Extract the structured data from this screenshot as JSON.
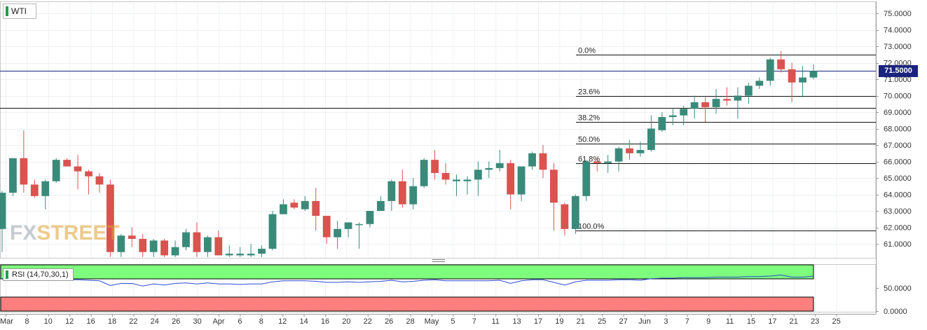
{
  "symbol": "WTI",
  "watermark": {
    "part1": "FX",
    "part2": "STREET"
  },
  "last_price": "71.5000",
  "rsi_label": "RSI (14,70,30,1)",
  "colors": {
    "up": "#3a8a7a",
    "down": "#d9534f",
    "rsi_line": "#2c4bd6",
    "overbought": "#7dfc7d",
    "oversold": "#ff7f7f",
    "price_line": "#1a237e"
  },
  "chart_data": [
    {
      "type": "candlestick",
      "title": "WTI",
      "ylim": [
        60.2,
        75.5
      ],
      "y_ticks": [
        "75.0000",
        "74.0000",
        "73.0000",
        "72.0000",
        "71.0000",
        "70.0000",
        "69.0000",
        "68.0000",
        "67.0000",
        "66.0000",
        "65.0000",
        "64.0000",
        "63.0000",
        "62.0000",
        "61.0000"
      ],
      "x_tick_labels": [
        "Mar",
        "8",
        "10",
        "12",
        "16",
        "18",
        "22",
        "24",
        "26",
        "30",
        "Apr",
        "6",
        "8",
        "12",
        "14",
        "16",
        "20",
        "22",
        "26",
        "28",
        "May",
        "5",
        "7",
        "11",
        "13",
        "17",
        "19",
        "21",
        "25",
        "27",
        "Jun",
        "3",
        "7",
        "9",
        "11",
        "15",
        "17",
        "21",
        "23",
        "25"
      ],
      "candles": [
        {
          "o": 61.9,
          "h": 64.2,
          "l": 60.5,
          "c": 64.1
        },
        {
          "o": 64.1,
          "h": 66.2,
          "l": 63.9,
          "c": 66.2
        },
        {
          "o": 66.2,
          "h": 67.9,
          "l": 64.1,
          "c": 64.6
        },
        {
          "o": 64.6,
          "h": 64.9,
          "l": 63.8,
          "c": 63.9
        },
        {
          "o": 63.9,
          "h": 64.9,
          "l": 63.1,
          "c": 64.8
        },
        {
          "o": 64.8,
          "h": 66.2,
          "l": 64.7,
          "c": 66.1
        },
        {
          "o": 66.1,
          "h": 66.2,
          "l": 65.7,
          "c": 65.7
        },
        {
          "o": 65.7,
          "h": 66.4,
          "l": 64.3,
          "c": 65.4
        },
        {
          "o": 65.4,
          "h": 65.5,
          "l": 64.0,
          "c": 65.1
        },
        {
          "o": 65.1,
          "h": 65.3,
          "l": 64.1,
          "c": 64.6
        },
        {
          "o": 64.6,
          "h": 64.9,
          "l": 60.2,
          "c": 60.5
        },
        {
          "o": 60.5,
          "h": 61.6,
          "l": 60.2,
          "c": 61.5
        },
        {
          "o": 61.5,
          "h": 62.0,
          "l": 60.8,
          "c": 61.3
        },
        {
          "o": 61.3,
          "h": 61.6,
          "l": 60.2,
          "c": 60.5
        },
        {
          "o": 60.5,
          "h": 61.3,
          "l": 60.2,
          "c": 61.2
        },
        {
          "o": 61.2,
          "h": 61.3,
          "l": 60.2,
          "c": 60.3
        },
        {
          "o": 60.3,
          "h": 61.2,
          "l": 60.2,
          "c": 60.8
        },
        {
          "o": 60.8,
          "h": 61.9,
          "l": 60.6,
          "c": 61.7
        },
        {
          "o": 61.7,
          "h": 62.3,
          "l": 60.2,
          "c": 60.5
        },
        {
          "o": 60.5,
          "h": 61.5,
          "l": 60.2,
          "c": 61.4
        },
        {
          "o": 61.4,
          "h": 61.8,
          "l": 60.3,
          "c": 60.3
        },
        {
          "o": 60.3,
          "h": 60.9,
          "l": 60.2,
          "c": 60.4
        },
        {
          "o": 60.3,
          "h": 60.8,
          "l": 60.2,
          "c": 60.4
        },
        {
          "o": 60.3,
          "h": 61.0,
          "l": 60.2,
          "c": 60.4
        },
        {
          "o": 60.4,
          "h": 60.9,
          "l": 60.2,
          "c": 60.7
        },
        {
          "o": 60.7,
          "h": 63.0,
          "l": 60.6,
          "c": 62.8
        },
        {
          "o": 62.8,
          "h": 63.7,
          "l": 62.8,
          "c": 63.4
        },
        {
          "o": 63.5,
          "h": 63.7,
          "l": 63.1,
          "c": 63.2
        },
        {
          "o": 63.1,
          "h": 63.9,
          "l": 63.0,
          "c": 63.6
        },
        {
          "o": 63.6,
          "h": 64.4,
          "l": 61.8,
          "c": 62.7
        },
        {
          "o": 62.7,
          "h": 62.7,
          "l": 61.0,
          "c": 61.4
        },
        {
          "o": 61.4,
          "h": 62.4,
          "l": 60.7,
          "c": 61.9
        },
        {
          "o": 61.9,
          "h": 62.3,
          "l": 61.4,
          "c": 62.3
        },
        {
          "o": 62.2,
          "h": 62.3,
          "l": 60.7,
          "c": 62.2
        },
        {
          "o": 62.2,
          "h": 63.0,
          "l": 62.0,
          "c": 63.0
        },
        {
          "o": 63.0,
          "h": 63.9,
          "l": 63.0,
          "c": 63.6
        },
        {
          "o": 63.6,
          "h": 64.9,
          "l": 63.0,
          "c": 64.8
        },
        {
          "o": 64.8,
          "h": 65.5,
          "l": 63.2,
          "c": 63.4
        },
        {
          "o": 63.4,
          "h": 65.0,
          "l": 63.1,
          "c": 64.5
        },
        {
          "o": 64.5,
          "h": 66.2,
          "l": 64.4,
          "c": 66.1
        },
        {
          "o": 66.1,
          "h": 66.7,
          "l": 64.9,
          "c": 65.3
        },
        {
          "o": 65.3,
          "h": 65.9,
          "l": 64.6,
          "c": 64.9
        },
        {
          "o": 64.8,
          "h": 65.2,
          "l": 63.9,
          "c": 64.9
        },
        {
          "o": 64.8,
          "h": 65.1,
          "l": 64.0,
          "c": 64.9
        },
        {
          "o": 64.9,
          "h": 66.0,
          "l": 63.9,
          "c": 65.5
        },
        {
          "o": 65.5,
          "h": 66.0,
          "l": 65.0,
          "c": 65.6
        },
        {
          "o": 65.6,
          "h": 66.7,
          "l": 65.4,
          "c": 65.9
        },
        {
          "o": 65.9,
          "h": 66.1,
          "l": 63.1,
          "c": 64.0
        },
        {
          "o": 64.0,
          "h": 65.7,
          "l": 63.6,
          "c": 65.7
        },
        {
          "o": 65.7,
          "h": 66.6,
          "l": 65.5,
          "c": 66.5
        },
        {
          "o": 66.5,
          "h": 67.0,
          "l": 65.0,
          "c": 65.5
        },
        {
          "o": 65.5,
          "h": 65.9,
          "l": 61.8,
          "c": 63.5
        },
        {
          "o": 63.4,
          "h": 63.5,
          "l": 61.5,
          "c": 61.9
        },
        {
          "o": 61.9,
          "h": 64.0,
          "l": 61.6,
          "c": 63.9
        },
        {
          "o": 63.9,
          "h": 66.1,
          "l": 63.6,
          "c": 66.0
        },
        {
          "o": 66.0,
          "h": 66.2,
          "l": 65.4,
          "c": 65.9
        },
        {
          "o": 65.9,
          "h": 66.4,
          "l": 65.3,
          "c": 66.0
        },
        {
          "o": 66.0,
          "h": 66.9,
          "l": 65.4,
          "c": 66.8
        },
        {
          "o": 66.8,
          "h": 67.3,
          "l": 66.1,
          "c": 66.5
        },
        {
          "o": 66.5,
          "h": 67.2,
          "l": 66.3,
          "c": 66.7
        },
        {
          "o": 66.7,
          "h": 68.8,
          "l": 66.6,
          "c": 68.0
        },
        {
          "o": 67.9,
          "h": 69.0,
          "l": 67.8,
          "c": 68.7
        },
        {
          "o": 68.7,
          "h": 69.2,
          "l": 68.2,
          "c": 68.8
        },
        {
          "o": 68.8,
          "h": 69.4,
          "l": 68.2,
          "c": 69.2
        },
        {
          "o": 69.2,
          "h": 70.0,
          "l": 68.6,
          "c": 69.6
        },
        {
          "o": 69.6,
          "h": 69.9,
          "l": 68.4,
          "c": 69.3
        },
        {
          "o": 69.3,
          "h": 70.4,
          "l": 68.9,
          "c": 69.8
        },
        {
          "o": 69.8,
          "h": 70.5,
          "l": 69.4,
          "c": 69.7
        },
        {
          "o": 69.7,
          "h": 70.5,
          "l": 68.6,
          "c": 70.0
        },
        {
          "o": 70.0,
          "h": 70.8,
          "l": 69.5,
          "c": 70.6
        },
        {
          "o": 70.6,
          "h": 71.1,
          "l": 70.4,
          "c": 70.9
        },
        {
          "o": 70.9,
          "h": 72.3,
          "l": 70.6,
          "c": 72.2
        },
        {
          "o": 72.2,
          "h": 72.7,
          "l": 71.4,
          "c": 71.6
        },
        {
          "o": 71.6,
          "h": 72.0,
          "l": 69.6,
          "c": 70.8
        },
        {
          "o": 70.8,
          "h": 71.8,
          "l": 69.9,
          "c": 71.1
        },
        {
          "o": 71.1,
          "h": 71.9,
          "l": 71.0,
          "c": 71.5
        }
      ],
      "fibonacci": [
        {
          "label": "0.0%",
          "value": 72.5
        },
        {
          "label": "23.6%",
          "value": 70.0
        },
        {
          "label": "38.2%",
          "value": 68.4
        },
        {
          "label": "50.0%",
          "value": 67.1
        },
        {
          "label": "61.8%",
          "value": 65.9
        },
        {
          "label": "100.0%",
          "value": 61.8
        }
      ],
      "horizontal_lines": [
        {
          "value": 71.5,
          "color": "#1a237e"
        },
        {
          "value": 69.25,
          "color": "#111111"
        }
      ]
    },
    {
      "type": "line",
      "title": "RSI (14,70,30,1)",
      "ylim": [
        0,
        100
      ],
      "y_ticks": [
        "50.0000",
        "0.0000"
      ],
      "overbought": 70,
      "oversold": 30,
      "values": [
        58,
        57,
        57,
        56,
        56,
        57,
        57,
        57,
        56,
        55,
        46,
        50,
        50,
        45,
        49,
        47,
        50,
        51,
        49,
        51,
        49,
        49,
        48,
        49,
        49,
        53,
        55,
        55,
        55,
        54,
        52,
        52,
        53,
        52,
        53,
        54,
        56,
        53,
        54,
        56,
        57,
        55,
        55,
        55,
        55,
        55,
        56,
        50,
        55,
        57,
        57,
        52,
        47,
        53,
        56,
        56,
        56,
        57,
        57,
        56,
        59,
        60,
        60,
        61,
        61,
        61,
        62,
        62,
        62,
        63,
        63,
        64,
        66,
        62,
        62,
        64
      ]
    }
  ]
}
